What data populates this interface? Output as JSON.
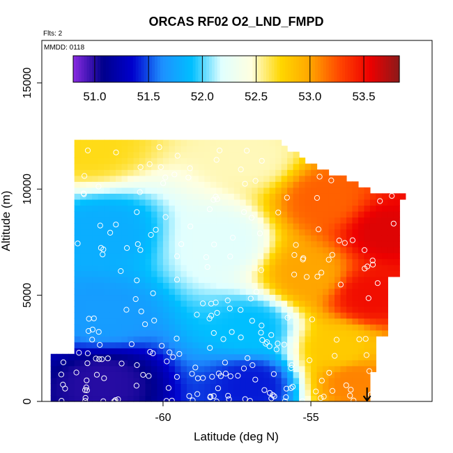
{
  "chart_data": {
    "type": "heatmap",
    "title": "ORCAS RF02 O2_LND_FMPD",
    "flights_label": "Flts: 2",
    "date_label": "MMDD: 0118",
    "xlabel": "Latitude (deg N)",
    "ylabel": "Altitude (m)",
    "xlim": [
      -64.1,
      -50.9
    ],
    "ylim": [
      0,
      17000
    ],
    "x_ticks": [
      -60,
      -55
    ],
    "y_ticks": [
      0,
      5000,
      10000,
      15000
    ],
    "colorbar": {
      "min": 50.8,
      "max": 53.83,
      "ticks": [
        "51.0",
        "51.5",
        "52.0",
        "52.5",
        "53.0",
        "53.5"
      ],
      "tick_values": [
        51.0,
        51.5,
        52.0,
        52.5,
        53.0,
        53.5
      ],
      "colors": [
        "#8a2be2",
        "#00008b",
        "#0000cd",
        "#1e90ff",
        "#00bfff",
        "#e0ffff",
        "#ffffe0",
        "#ffd700",
        "#ffa500",
        "#ff4500",
        "#ee0000",
        "#8b1a1a"
      ]
    },
    "field_description_points": [
      {
        "lat": -62.5,
        "alt": 12000,
        "value": 52.7
      },
      {
        "lat": -57.0,
        "alt": 11500,
        "value": 52.5
      },
      {
        "lat": -54.5,
        "alt": 9500,
        "value": 53.2
      },
      {
        "lat": -52.5,
        "alt": 8000,
        "value": 53.6
      },
      {
        "lat": -62.0,
        "alt": 8000,
        "value": 51.8
      },
      {
        "lat": -58.0,
        "alt": 7500,
        "value": 52.2
      },
      {
        "lat": -55.0,
        "alt": 6000,
        "value": 53.0
      },
      {
        "lat": -53.0,
        "alt": 5000,
        "value": 53.5
      },
      {
        "lat": -62.0,
        "alt": 4000,
        "value": 51.7
      },
      {
        "lat": -57.0,
        "alt": 3500,
        "value": 51.9
      },
      {
        "lat": -54.0,
        "alt": 2500,
        "value": 52.8
      },
      {
        "lat": -62.0,
        "alt": 1000,
        "value": 51.0
      },
      {
        "lat": -57.0,
        "alt": 800,
        "value": 51.4
      },
      {
        "lat": -53.5,
        "alt": 1000,
        "value": 53.1
      }
    ],
    "arrow_marker_lat": -53.1
  }
}
